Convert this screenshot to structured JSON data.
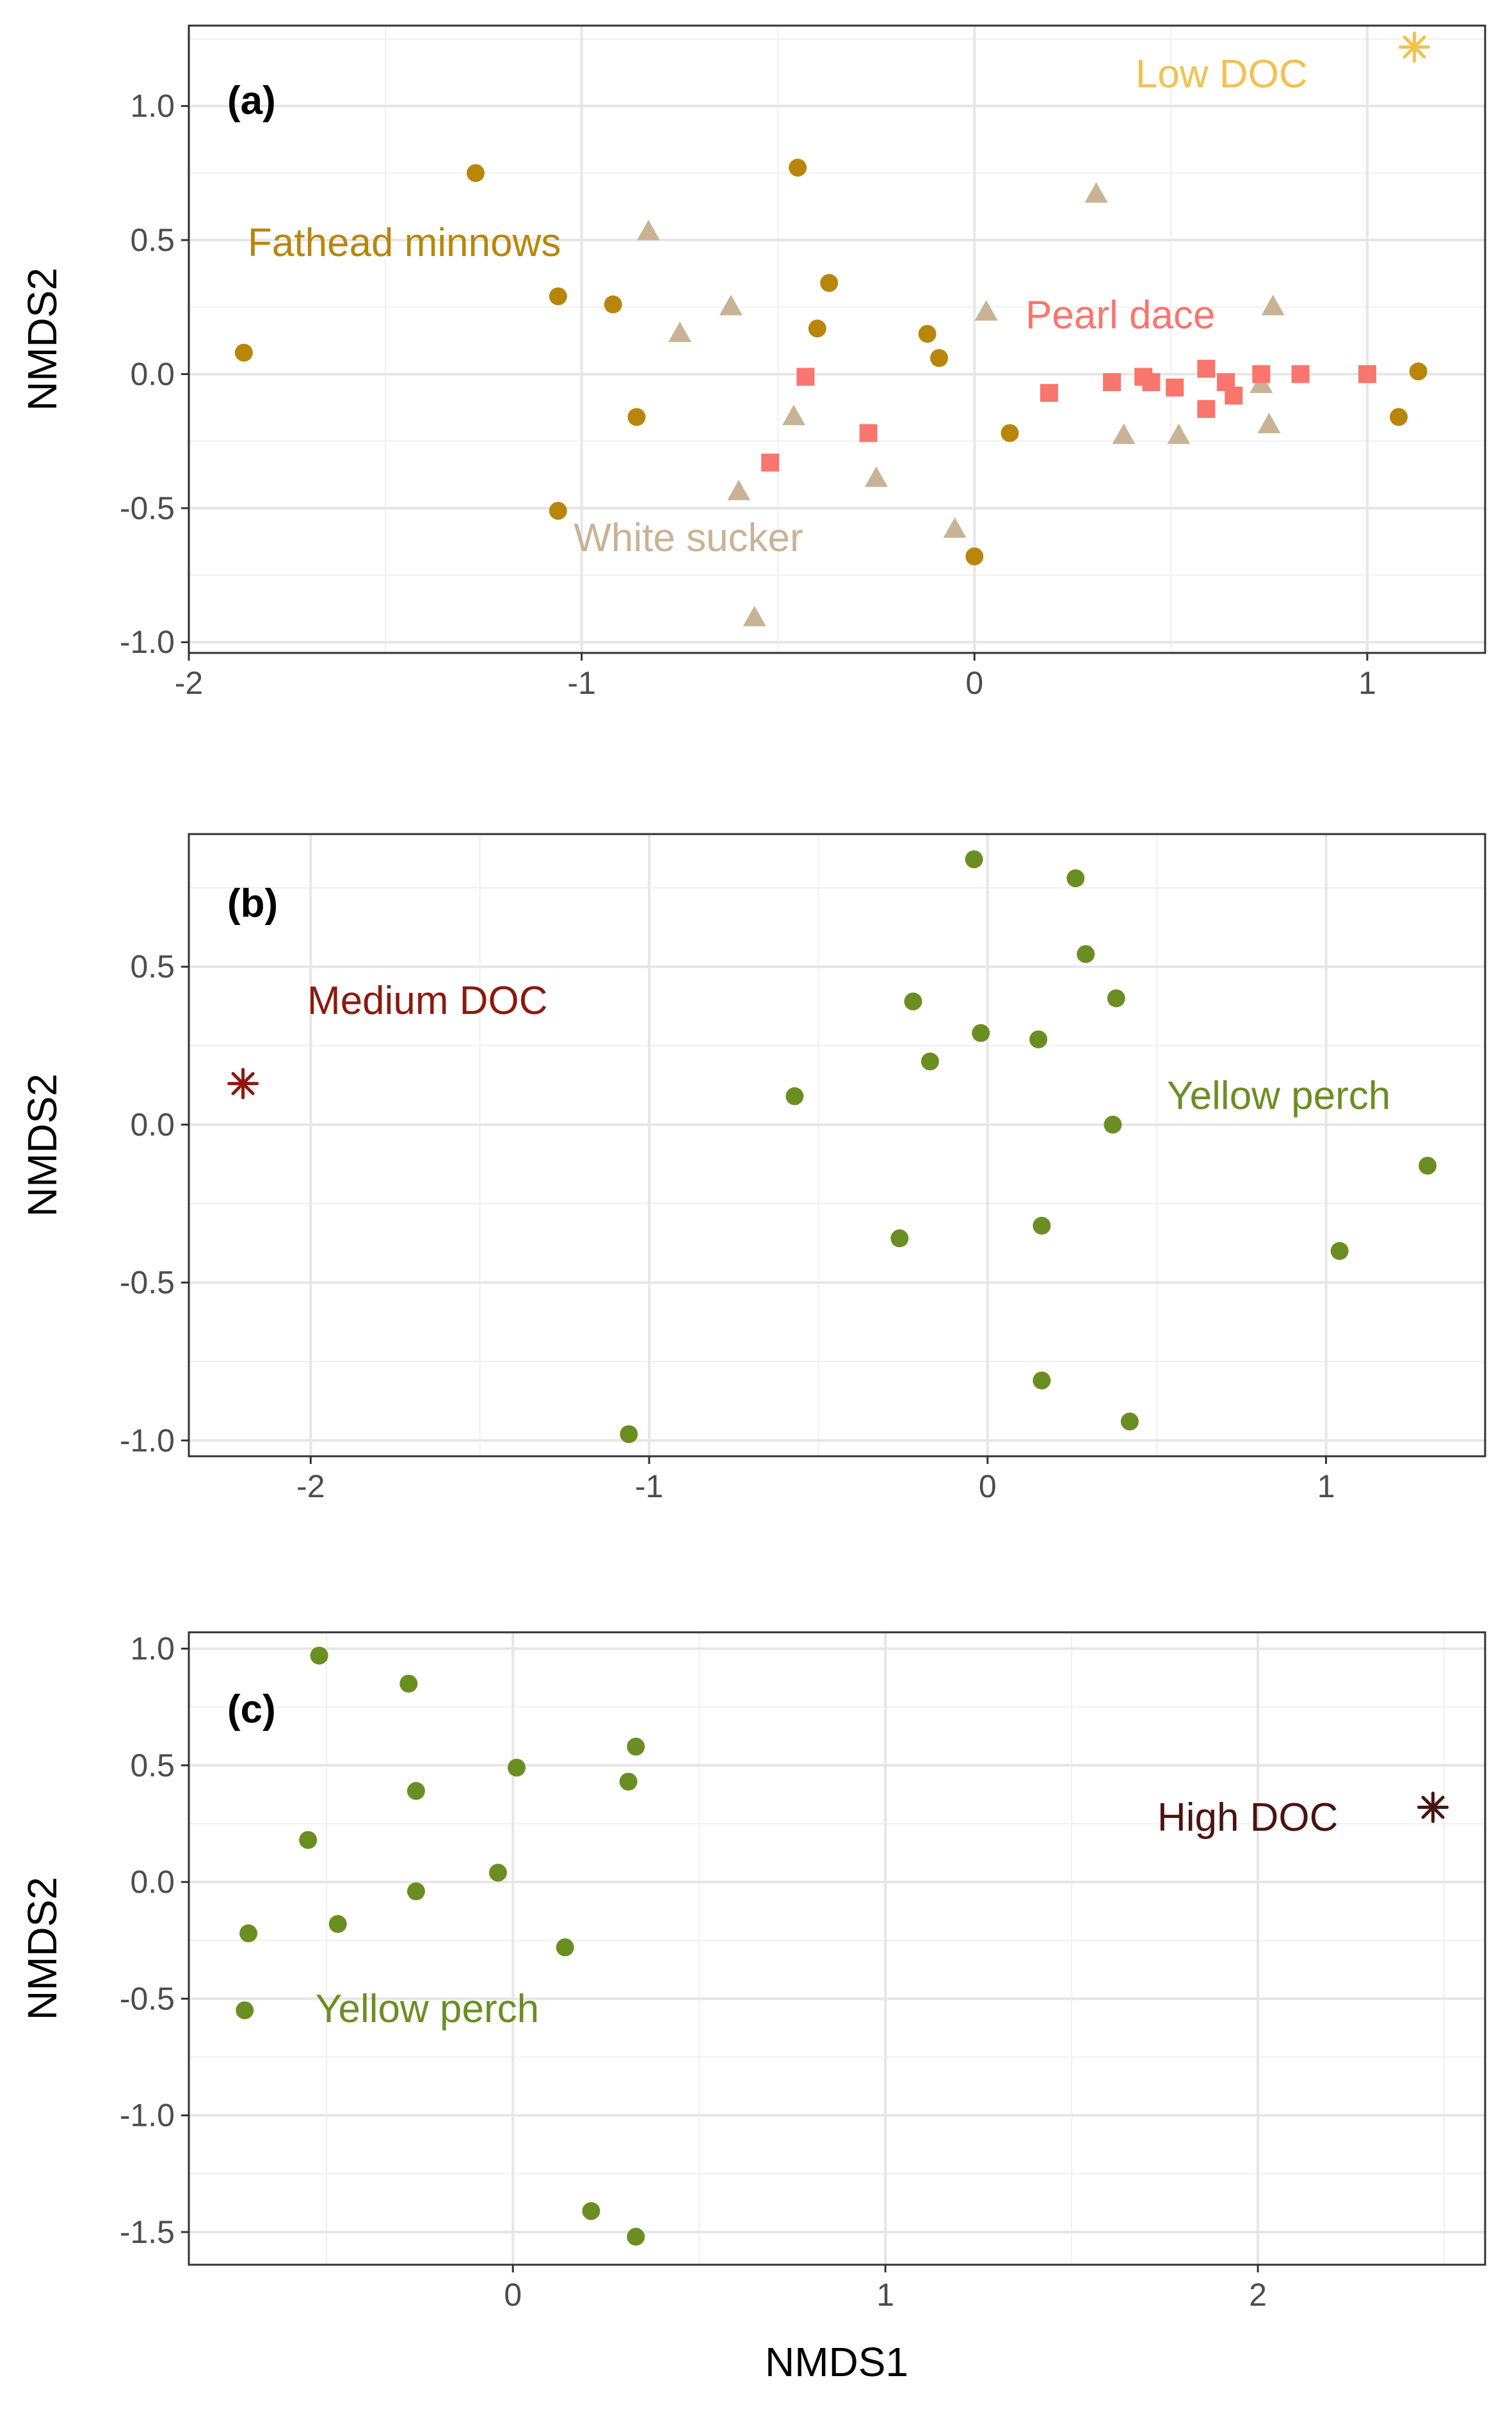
{
  "chart_data": [
    {
      "type": "scatter",
      "panel_label": "(a)",
      "xlabel": "",
      "ylabel": "NMDS2",
      "xlim": [
        -2.0,
        1.3
      ],
      "ylim": [
        -1.04,
        1.3
      ],
      "x_ticks": [
        -2,
        -1,
        0,
        1
      ],
      "x_tick_labels": [
        "-2",
        "-1",
        "0",
        "1"
      ],
      "y_ticks": [
        -1.0,
        -0.5,
        0.0,
        0.5,
        1.0
      ],
      "y_tick_labels": [
        "-1.0",
        "-0.5",
        "0.0",
        "0.5",
        "1.0"
      ],
      "grid": true,
      "legend": "none",
      "series": [
        {
          "name": "Fathead minnows",
          "color": "#b8860b",
          "marker": "circle",
          "label_at": [
            -1.85,
            0.44
          ],
          "points": [
            [
              -1.86,
              0.08
            ],
            [
              -1.27,
              0.75
            ],
            [
              -1.06,
              0.29
            ],
            [
              -0.92,
              0.26
            ],
            [
              -0.86,
              -0.16
            ],
            [
              -1.06,
              -0.51
            ],
            [
              -0.45,
              0.77
            ],
            [
              -0.37,
              0.34
            ],
            [
              -0.4,
              0.17
            ],
            [
              -0.12,
              0.15
            ],
            [
              -0.09,
              0.06
            ],
            [
              0.09,
              -0.22
            ],
            [
              0.0,
              -0.68
            ],
            [
              1.13,
              0.01
            ],
            [
              1.08,
              -0.16
            ]
          ]
        },
        {
          "name": "White sucker",
          "color": "#c8b396",
          "marker": "triangle",
          "label_at": [
            -1.02,
            -0.66
          ],
          "points": [
            [
              -0.83,
              0.53
            ],
            [
              -0.75,
              0.15
            ],
            [
              -0.62,
              0.25
            ],
            [
              -0.6,
              -0.44
            ],
            [
              -0.46,
              -0.16
            ],
            [
              -0.25,
              -0.39
            ],
            [
              -0.05,
              -0.58
            ],
            [
              0.03,
              0.23
            ],
            [
              0.31,
              0.67
            ],
            [
              0.38,
              -0.23
            ],
            [
              0.52,
              -0.23
            ],
            [
              0.73,
              -0.04
            ],
            [
              0.75,
              -0.19
            ],
            [
              0.76,
              0.25
            ],
            [
              -0.56,
              -0.91
            ]
          ]
        },
        {
          "name": "Pearl dace",
          "color": "#f8766d",
          "marker": "square",
          "label_at": [
            0.13,
            0.17
          ],
          "points": [
            [
              -0.43,
              -0.01
            ],
            [
              -0.52,
              -0.33
            ],
            [
              -0.27,
              -0.22
            ],
            [
              0.19,
              -0.07
            ],
            [
              0.35,
              -0.03
            ],
            [
              0.43,
              -0.01
            ],
            [
              0.45,
              -0.03
            ],
            [
              0.51,
              -0.05
            ],
            [
              0.59,
              0.02
            ],
            [
              0.59,
              -0.13
            ],
            [
              0.64,
              -0.03
            ],
            [
              0.66,
              -0.08
            ],
            [
              0.73,
              0.0
            ],
            [
              0.83,
              0.0
            ],
            [
              1.0,
              0.0
            ]
          ]
        },
        {
          "name": "Low DOC",
          "color": "#f2c14e",
          "marker": "asterisk",
          "label_at": [
            0.41,
            1.07
          ],
          "points": [
            [
              1.12,
              1.22
            ]
          ]
        }
      ]
    },
    {
      "type": "scatter",
      "panel_label": "(b)",
      "xlabel": "",
      "ylabel": "NMDS2",
      "xlim": [
        -2.36,
        1.47
      ],
      "ylim": [
        -1.05,
        0.92
      ],
      "x_ticks": [
        -2,
        -1,
        0,
        1
      ],
      "x_tick_labels": [
        "-2",
        "-1",
        "0",
        "1"
      ],
      "y_ticks": [
        -1.0,
        -0.5,
        0.0,
        0.5
      ],
      "y_tick_labels": [
        "-1.0",
        "-0.5",
        "0.0",
        "0.5"
      ],
      "grid": true,
      "legend": "none",
      "series": [
        {
          "name": "Yellow perch",
          "color": "#6b8e23",
          "marker": "circle",
          "label_at": [
            0.53,
            0.05
          ],
          "points": [
            [
              -0.04,
              0.84
            ],
            [
              0.26,
              0.78
            ],
            [
              0.29,
              0.54
            ],
            [
              0.38,
              0.4
            ],
            [
              -0.22,
              0.39
            ],
            [
              -0.02,
              0.29
            ],
            [
              0.15,
              0.27
            ],
            [
              -0.17,
              0.2
            ],
            [
              -0.57,
              0.09
            ],
            [
              0.37,
              0.0
            ],
            [
              1.3,
              -0.13
            ],
            [
              -0.26,
              -0.36
            ],
            [
              0.16,
              -0.32
            ],
            [
              1.04,
              -0.4
            ],
            [
              0.16,
              -0.81
            ],
            [
              0.42,
              -0.94
            ],
            [
              -1.06,
              -0.98
            ]
          ]
        },
        {
          "name": "Medium DOC",
          "color": "#8b1a0e",
          "marker": "asterisk",
          "label_at": [
            -2.01,
            0.35
          ],
          "points": [
            [
              -2.2,
              0.13
            ]
          ]
        }
      ]
    },
    {
      "type": "scatter",
      "panel_label": "(c)",
      "xlabel": "NMDS1",
      "ylabel": "NMDS2",
      "xlim": [
        -0.87,
        2.61
      ],
      "ylim": [
        -1.64,
        1.07
      ],
      "x_ticks": [
        0,
        1,
        2
      ],
      "x_tick_labels": [
        "0",
        "1",
        "2"
      ],
      "y_ticks": [
        -1.5,
        -1.0,
        -0.5,
        0.0,
        0.5,
        1.0
      ],
      "y_tick_labels": [
        "-1.5",
        "-1.0",
        "-0.5",
        "0.0",
        "0.5",
        "1.0"
      ],
      "grid": true,
      "legend": "none",
      "series": [
        {
          "name": "Yellow perch",
          "color": "#6b8e23",
          "marker": "circle",
          "label_at": [
            -0.53,
            -0.6
          ],
          "points": [
            [
              -0.52,
              0.97
            ],
            [
              -0.28,
              0.85
            ],
            [
              0.33,
              0.58
            ],
            [
              0.01,
              0.49
            ],
            [
              0.31,
              0.43
            ],
            [
              -0.26,
              0.39
            ],
            [
              -0.55,
              0.18
            ],
            [
              -0.04,
              0.04
            ],
            [
              -0.26,
              -0.04
            ],
            [
              -0.47,
              -0.18
            ],
            [
              -0.71,
              -0.22
            ],
            [
              0.14,
              -0.28
            ],
            [
              -0.72,
              -0.55
            ],
            [
              0.21,
              -1.41
            ],
            [
              0.33,
              -1.52
            ]
          ]
        },
        {
          "name": "High DOC",
          "color": "#4a1410",
          "marker": "asterisk",
          "label_at": [
            1.73,
            0.22
          ],
          "points": [
            [
              2.47,
              0.32
            ]
          ]
        }
      ]
    }
  ]
}
